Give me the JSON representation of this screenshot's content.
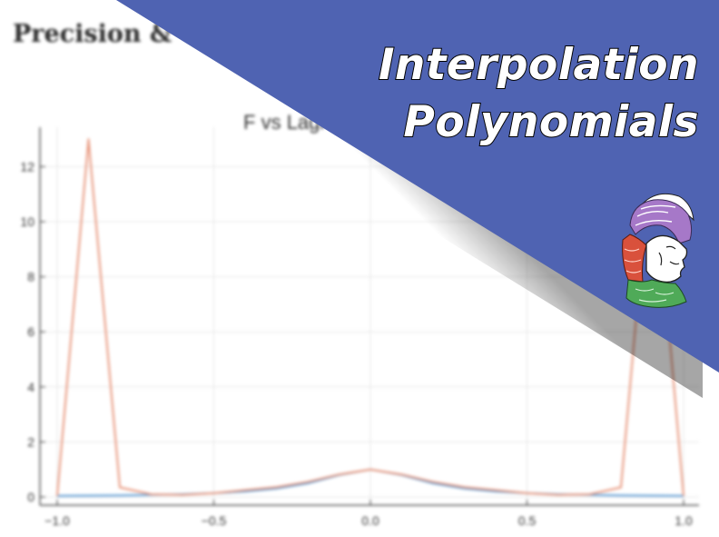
{
  "page": {
    "heading": "Precision &"
  },
  "banner": {
    "title_line1": "Interpolation",
    "title_line2": "Polynomials",
    "color": "#4f63b2",
    "logo": "athena-head-logo"
  },
  "chart_data": {
    "type": "line",
    "title": "F vs Lagra",
    "xlabel": "",
    "ylabel": "",
    "xlim": [
      -1.0,
      1.0
    ],
    "ylim": [
      0,
      13
    ],
    "xticks": [
      -1.0,
      -0.5,
      0.0,
      0.5,
      1.0
    ],
    "xtick_labels": [
      "−1.0",
      "−0.5",
      "0.0",
      "0.5",
      "1.0"
    ],
    "yticks": [
      0,
      2,
      4,
      6,
      8,
      10,
      12
    ],
    "ytick_labels": [
      "0",
      "2",
      "4",
      "6",
      "8",
      "10",
      "12"
    ],
    "grid": true,
    "series": [
      {
        "color": "#5b9bd5",
        "x": [
          -1.0,
          -0.9,
          -0.8,
          -0.7,
          -0.6,
          -0.5,
          -0.4,
          -0.3,
          -0.2,
          -0.1,
          0.0,
          0.1,
          0.2,
          0.3,
          0.4,
          0.5,
          0.6,
          0.7,
          0.8,
          0.9,
          1.0
        ],
        "y": [
          0.04,
          0.05,
          0.06,
          0.08,
          0.1,
          0.14,
          0.2,
          0.31,
          0.5,
          0.8,
          1.0,
          0.8,
          0.5,
          0.31,
          0.2,
          0.14,
          0.1,
          0.08,
          0.06,
          0.05,
          0.04
        ]
      },
      {
        "color": "#e8967c",
        "x": [
          -1.0,
          -0.9,
          -0.8,
          -0.7,
          -0.6,
          -0.5,
          -0.4,
          -0.3,
          -0.2,
          -0.1,
          0.0,
          0.1,
          0.2,
          0.3,
          0.4,
          0.5,
          0.6,
          0.7,
          0.8,
          0.9,
          1.0
        ],
        "y": [
          0.04,
          13.0,
          0.35,
          0.1,
          0.08,
          0.14,
          0.25,
          0.36,
          0.55,
          0.82,
          1.0,
          0.82,
          0.55,
          0.36,
          0.25,
          0.14,
          0.08,
          0.1,
          0.35,
          13.0,
          0.04
        ]
      }
    ]
  }
}
